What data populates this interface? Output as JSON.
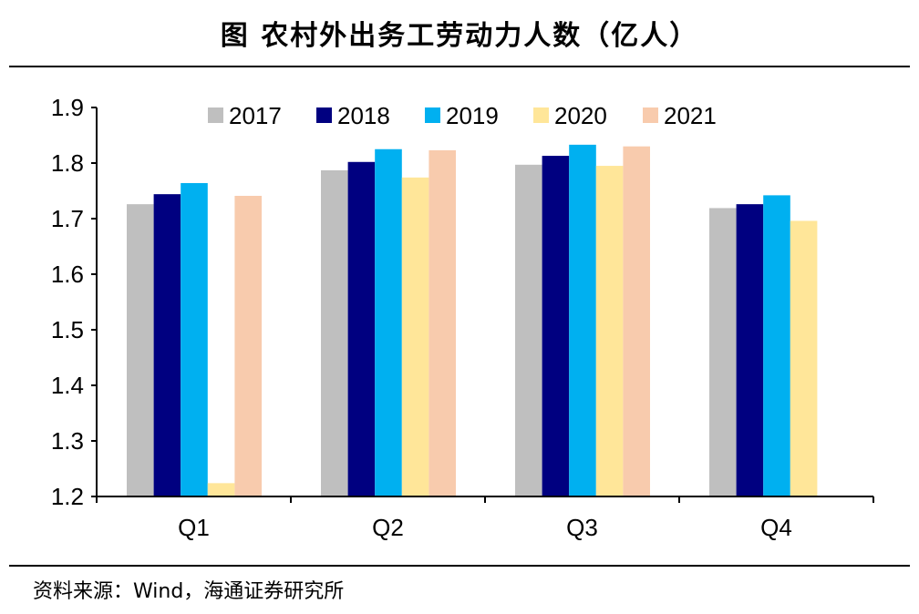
{
  "title": "图 农村外出务工劳动力人数（亿人）",
  "source": "资料来源：Wind，海通证券研究所",
  "chart_data": {
    "type": "bar",
    "title": "农村外出务工劳动力人数（亿人）",
    "xlabel": "",
    "ylabel": "",
    "categories": [
      "Q1",
      "Q2",
      "Q3",
      "Q4"
    ],
    "ylim": [
      1.2,
      1.9
    ],
    "yticks": [
      1.2,
      1.3,
      1.4,
      1.5,
      1.6,
      1.7,
      1.8,
      1.9
    ],
    "ytick_labels": [
      "1.2",
      "1.3",
      "1.4",
      "1.5",
      "1.6",
      "1.7",
      "1.8",
      "1.9"
    ],
    "grid": false,
    "legend_position": "top",
    "series": [
      {
        "name": "2017",
        "color": "#bfbfbf",
        "values": [
          1.726,
          1.787,
          1.797,
          1.719
        ]
      },
      {
        "name": "2018",
        "color": "#000080",
        "values": [
          1.744,
          1.802,
          1.813,
          1.726
        ]
      },
      {
        "name": "2019",
        "color": "#00b0f0",
        "values": [
          1.764,
          1.825,
          1.833,
          1.742
        ]
      },
      {
        "name": "2020",
        "color": "#ffe699",
        "values": [
          1.224,
          1.774,
          1.795,
          1.696
        ]
      },
      {
        "name": "2021",
        "color": "#f8cbad",
        "values": [
          1.741,
          1.823,
          1.83,
          null
        ]
      }
    ]
  }
}
